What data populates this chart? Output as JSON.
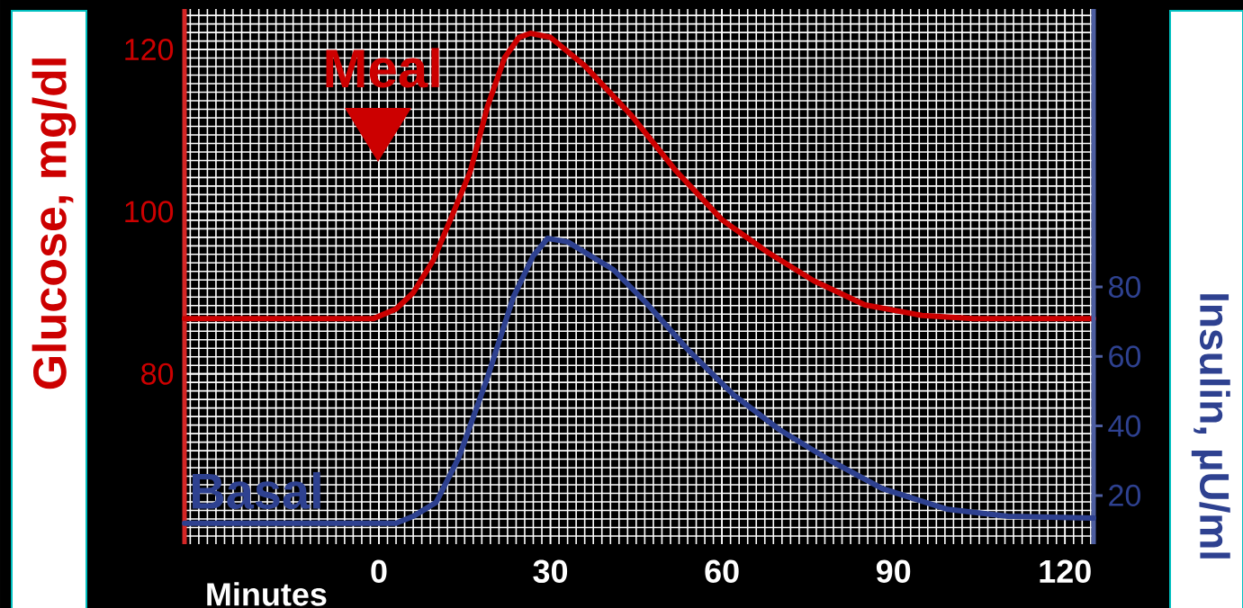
{
  "chart_data": {
    "type": "line",
    "xlabel": "Minutes",
    "ylabel": "Glucose, mg/dl",
    "y2label": "Insulin, µU/ml",
    "xlim": [
      -34,
      125
    ],
    "xticks": [
      0,
      30,
      60,
      90,
      120
    ],
    "ylim": [
      59,
      125
    ],
    "yticks": [
      80,
      100,
      120
    ],
    "y2lim": [
      6,
      160
    ],
    "y2ticks": [
      20,
      40,
      60,
      80
    ],
    "grid": true,
    "annotations": [
      "Meal",
      "Basal"
    ],
    "series": [
      {
        "color": "#cc0000",
        "axis": "y",
        "x": [
          -34,
          -1,
          3,
          6,
          9.5,
          12.5,
          16,
          19,
          22,
          24.5,
          26.5,
          30,
          36,
          44,
          52,
          60,
          68,
          76,
          85,
          95,
          104,
          125
        ],
        "values": [
          86.8,
          86.8,
          88,
          90,
          94,
          99,
          105,
          113,
          119,
          121.5,
          122,
          121.5,
          118,
          112,
          105,
          99,
          95,
          91.5,
          88.5,
          87.2,
          86.8,
          86.8
        ]
      },
      {
        "color": "#2e4190",
        "axis": "y2",
        "x": [
          -34,
          3,
          6,
          10,
          14,
          19,
          23.5,
          27,
          29.5,
          33,
          41,
          47,
          54,
          62,
          70,
          79,
          88,
          99.5,
          110,
          125
        ],
        "values": [
          12,
          12,
          14,
          18,
          31,
          54,
          77,
          89,
          94,
          93,
          85,
          75,
          62,
          49,
          39,
          30,
          22,
          16,
          14,
          13.5
        ]
      }
    ]
  }
}
